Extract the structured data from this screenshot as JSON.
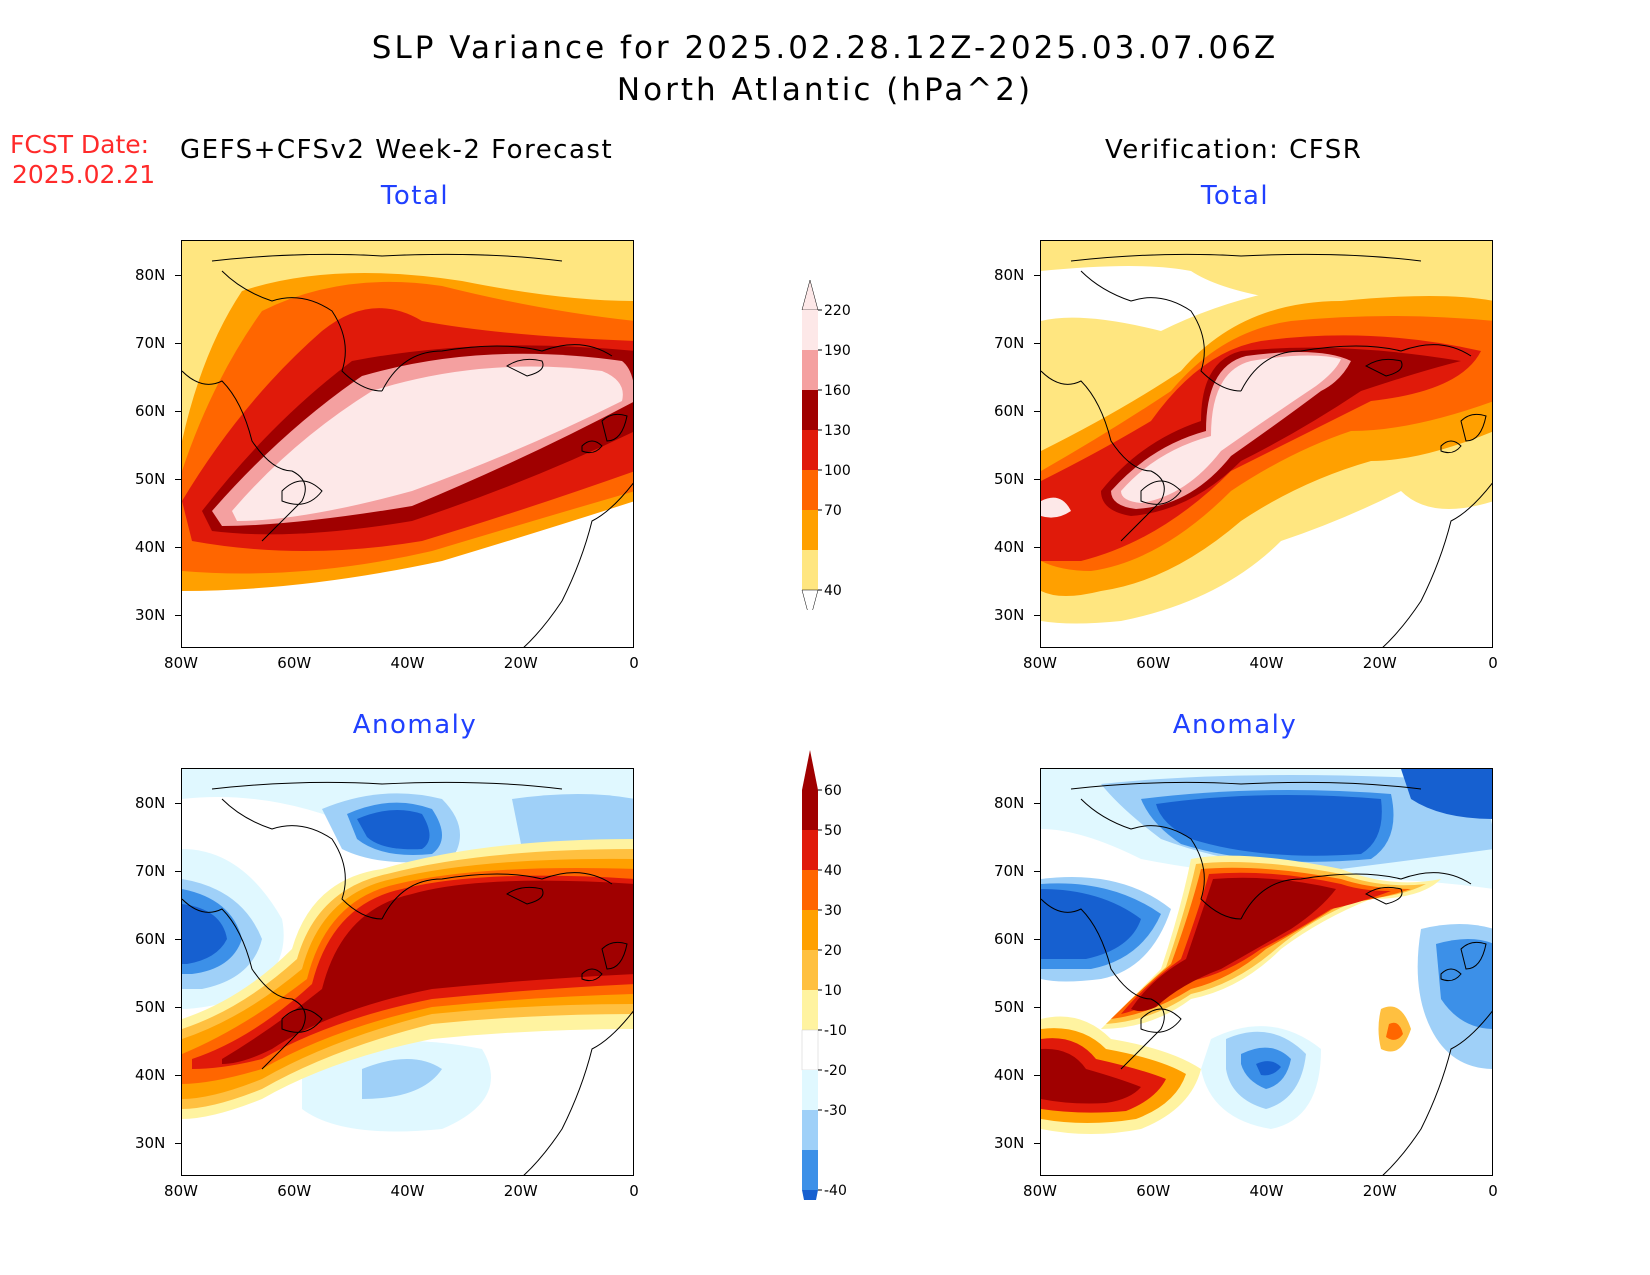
{
  "title_line1": "SLP Variance for 2025.02.28.12Z-2025.03.07.06Z",
  "title_line2": "North Atlantic (hPa^2)",
  "fcst_label": "FCST Date:",
  "fcst_date": "2025.02.21",
  "left_header": "GEFS+CFSv2 Week-2 Forecast",
  "right_header": "Verification: CFSR",
  "panels": {
    "forecast_total": {
      "label": "Total"
    },
    "verification_total": {
      "label": "Total"
    },
    "forecast_anomaly": {
      "label": "Anomaly"
    },
    "verification_anomaly": {
      "label": "Anomaly"
    }
  },
  "axes": {
    "lat_ticks": [
      "80N",
      "70N",
      "60N",
      "50N",
      "40N",
      "30N"
    ],
    "lon_ticks": [
      "80W",
      "60W",
      "40W",
      "20W",
      "0"
    ]
  },
  "colorbars": {
    "total": {
      "levels": [
        "220",
        "190",
        "160",
        "130",
        "100",
        "70",
        "40"
      ],
      "colors": [
        "#fde8e8",
        "#f4a0a0",
        "#a00000",
        "#e01a0a",
        "#ff6600",
        "#ffa000",
        "#ffe680"
      ]
    },
    "anomaly": {
      "levels": [
        "60",
        "50",
        "40",
        "30",
        "20",
        "10",
        "-10",
        "-20",
        "-30",
        "-40"
      ],
      "colors": [
        "#a00000",
        "#e01a0a",
        "#ff6600",
        "#ffa000",
        "#ffc040",
        "#fff3a0",
        "#ffffff",
        "#e0f8ff",
        "#9fd0f8",
        "#3c90e8",
        "#1660d0"
      ]
    }
  }
}
